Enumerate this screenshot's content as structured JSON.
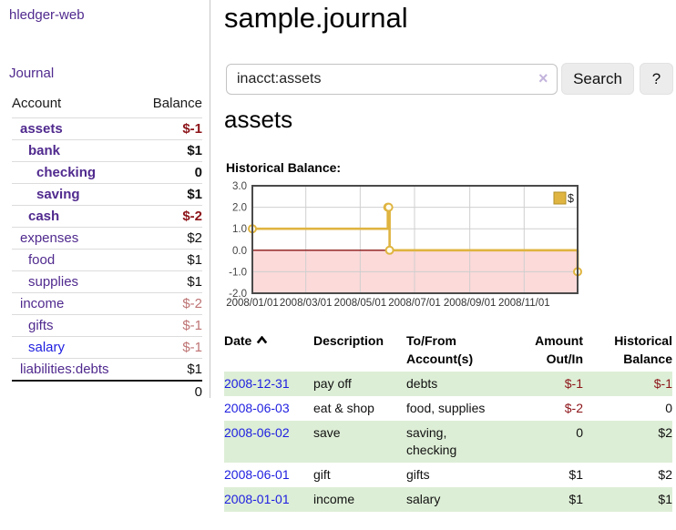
{
  "sidebar": {
    "app_title": "hledger-web",
    "journal_label": "Journal",
    "accounts": {
      "account_header": "Account",
      "balance_header": "Balance",
      "rows": [
        {
          "name": "assets",
          "depth": 0,
          "emph": true,
          "name_color": "purple",
          "balance": "$-1",
          "balance_style": "neg-strong"
        },
        {
          "name": "bank",
          "depth": 1,
          "emph": true,
          "name_color": "purple",
          "balance": "$1",
          "balance_style": "plain"
        },
        {
          "name": "checking",
          "depth": 2,
          "emph": true,
          "name_color": "purple",
          "balance": "0",
          "balance_style": "plain"
        },
        {
          "name": "saving",
          "depth": 2,
          "emph": true,
          "name_color": "purple",
          "balance": "$1",
          "balance_style": "plain"
        },
        {
          "name": "cash",
          "depth": 1,
          "emph": true,
          "name_color": "purple",
          "balance": "$-2",
          "balance_style": "neg-strong"
        },
        {
          "name": "expenses",
          "depth": 0,
          "emph": false,
          "name_color": "purple",
          "balance": "$2",
          "balance_style": "plain"
        },
        {
          "name": "food",
          "depth": 1,
          "emph": false,
          "name_color": "purple",
          "balance": "$1",
          "balance_style": "plain"
        },
        {
          "name": "supplies",
          "depth": 1,
          "emph": false,
          "name_color": "purple",
          "balance": "$1",
          "balance_style": "plain"
        },
        {
          "name": "income",
          "depth": 0,
          "emph": false,
          "name_color": "purple",
          "balance": "$-2",
          "balance_style": "neg-soft"
        },
        {
          "name": "gifts",
          "depth": 1,
          "emph": false,
          "name_color": "purple",
          "balance": "$-1",
          "balance_style": "neg-soft"
        },
        {
          "name": "salary",
          "depth": 1,
          "emph": false,
          "name_color": "blue",
          "balance": "$-1",
          "balance_style": "neg-soft"
        },
        {
          "name": "liabilities:debts",
          "depth": 0,
          "emph": false,
          "name_color": "purple",
          "balance": "$1",
          "balance_style": "plain"
        }
      ],
      "total": "0"
    }
  },
  "main": {
    "title": "sample.journal",
    "search": {
      "value": "inacct:assets",
      "clear_icon": "×",
      "button_label": "Search",
      "help_label": "?"
    },
    "account_heading": "assets",
    "chart_label": "Historical Balance:"
  },
  "chart_data": {
    "type": "line",
    "step": true,
    "title": "Historical Balance:",
    "series": [
      {
        "name": "$",
        "x_dates": [
          "2008-01-01",
          "2008-06-01",
          "2008-06-02",
          "2008-06-03",
          "2008-12-31"
        ],
        "x_days": [
          0,
          152,
          153,
          154,
          365
        ],
        "values": [
          1,
          2,
          2,
          0,
          -1
        ]
      }
    ],
    "x_domain_days": [
      0,
      365
    ],
    "x_ticks": [
      {
        "day": 0,
        "label": "2008/01/01"
      },
      {
        "day": 60,
        "label": "2008/03/01"
      },
      {
        "day": 121,
        "label": "2008/05/01"
      },
      {
        "day": 182,
        "label": "2008/07/01"
      },
      {
        "day": 244,
        "label": "2008/09/01"
      },
      {
        "day": 305,
        "label": "2008/11/01"
      }
    ],
    "y_ticks": [
      3,
      2,
      1,
      0,
      -1,
      -2
    ],
    "y_tick_labels": [
      "3.0",
      "2.0",
      "1.0",
      "0.0",
      "-1.0",
      "-2.0"
    ],
    "ylim": [
      -2,
      3
    ],
    "grid": true,
    "legend": {
      "label": "$",
      "position": "top-right"
    },
    "colors": {
      "line": "#dfb440",
      "marker_fill": "#fffdf0",
      "negative_fill": "#fcdada",
      "zero_line": "#8c1414",
      "grid": "#cfcfcf",
      "border": "#4a4a4a",
      "legend_border": "#b08f28"
    }
  },
  "transactions": {
    "headers": {
      "date": "Date",
      "sort_icon": "chevron-up",
      "description": "Description",
      "accounts_line1": "To/From",
      "accounts_line2": "Account(s)",
      "amount_line1": "Amount",
      "amount_line2": "Out/In",
      "balance_line1": "Historical",
      "balance_line2": "Balance"
    },
    "rows": [
      {
        "date": "2008-12-31",
        "description": "pay off",
        "account_lines": [
          "debts"
        ],
        "amount": "$-1",
        "amount_style": "neg",
        "balance": "$-1",
        "balance_style": "neg"
      },
      {
        "date": "2008-06-03",
        "description": "eat & shop",
        "account_lines": [
          "food, supplies"
        ],
        "amount": "$-2",
        "amount_style": "neg",
        "balance": "0",
        "balance_style": "plain"
      },
      {
        "date": "2008-06-02",
        "description": "save",
        "account_lines": [
          "saving,",
          "checking"
        ],
        "amount": "0",
        "amount_style": "plain",
        "balance": "$2",
        "balance_style": "plain"
      },
      {
        "date": "2008-06-01",
        "description": "gift",
        "account_lines": [
          "gifts"
        ],
        "amount": "$1",
        "amount_style": "plain",
        "balance": "$2",
        "balance_style": "plain"
      },
      {
        "date": "2008-01-01",
        "description": "income",
        "account_lines": [
          "salary"
        ],
        "amount": "$1",
        "amount_style": "plain",
        "balance": "$1",
        "balance_style": "plain"
      }
    ]
  },
  "colors": {
    "link_purple": "#502a8e",
    "link_blue": "#1e1ee0",
    "negative_strong": "#8c1419",
    "negative_soft": "#be7373",
    "row_stripe_green": "#ddeed6",
    "button_bg": "#ececec"
  }
}
